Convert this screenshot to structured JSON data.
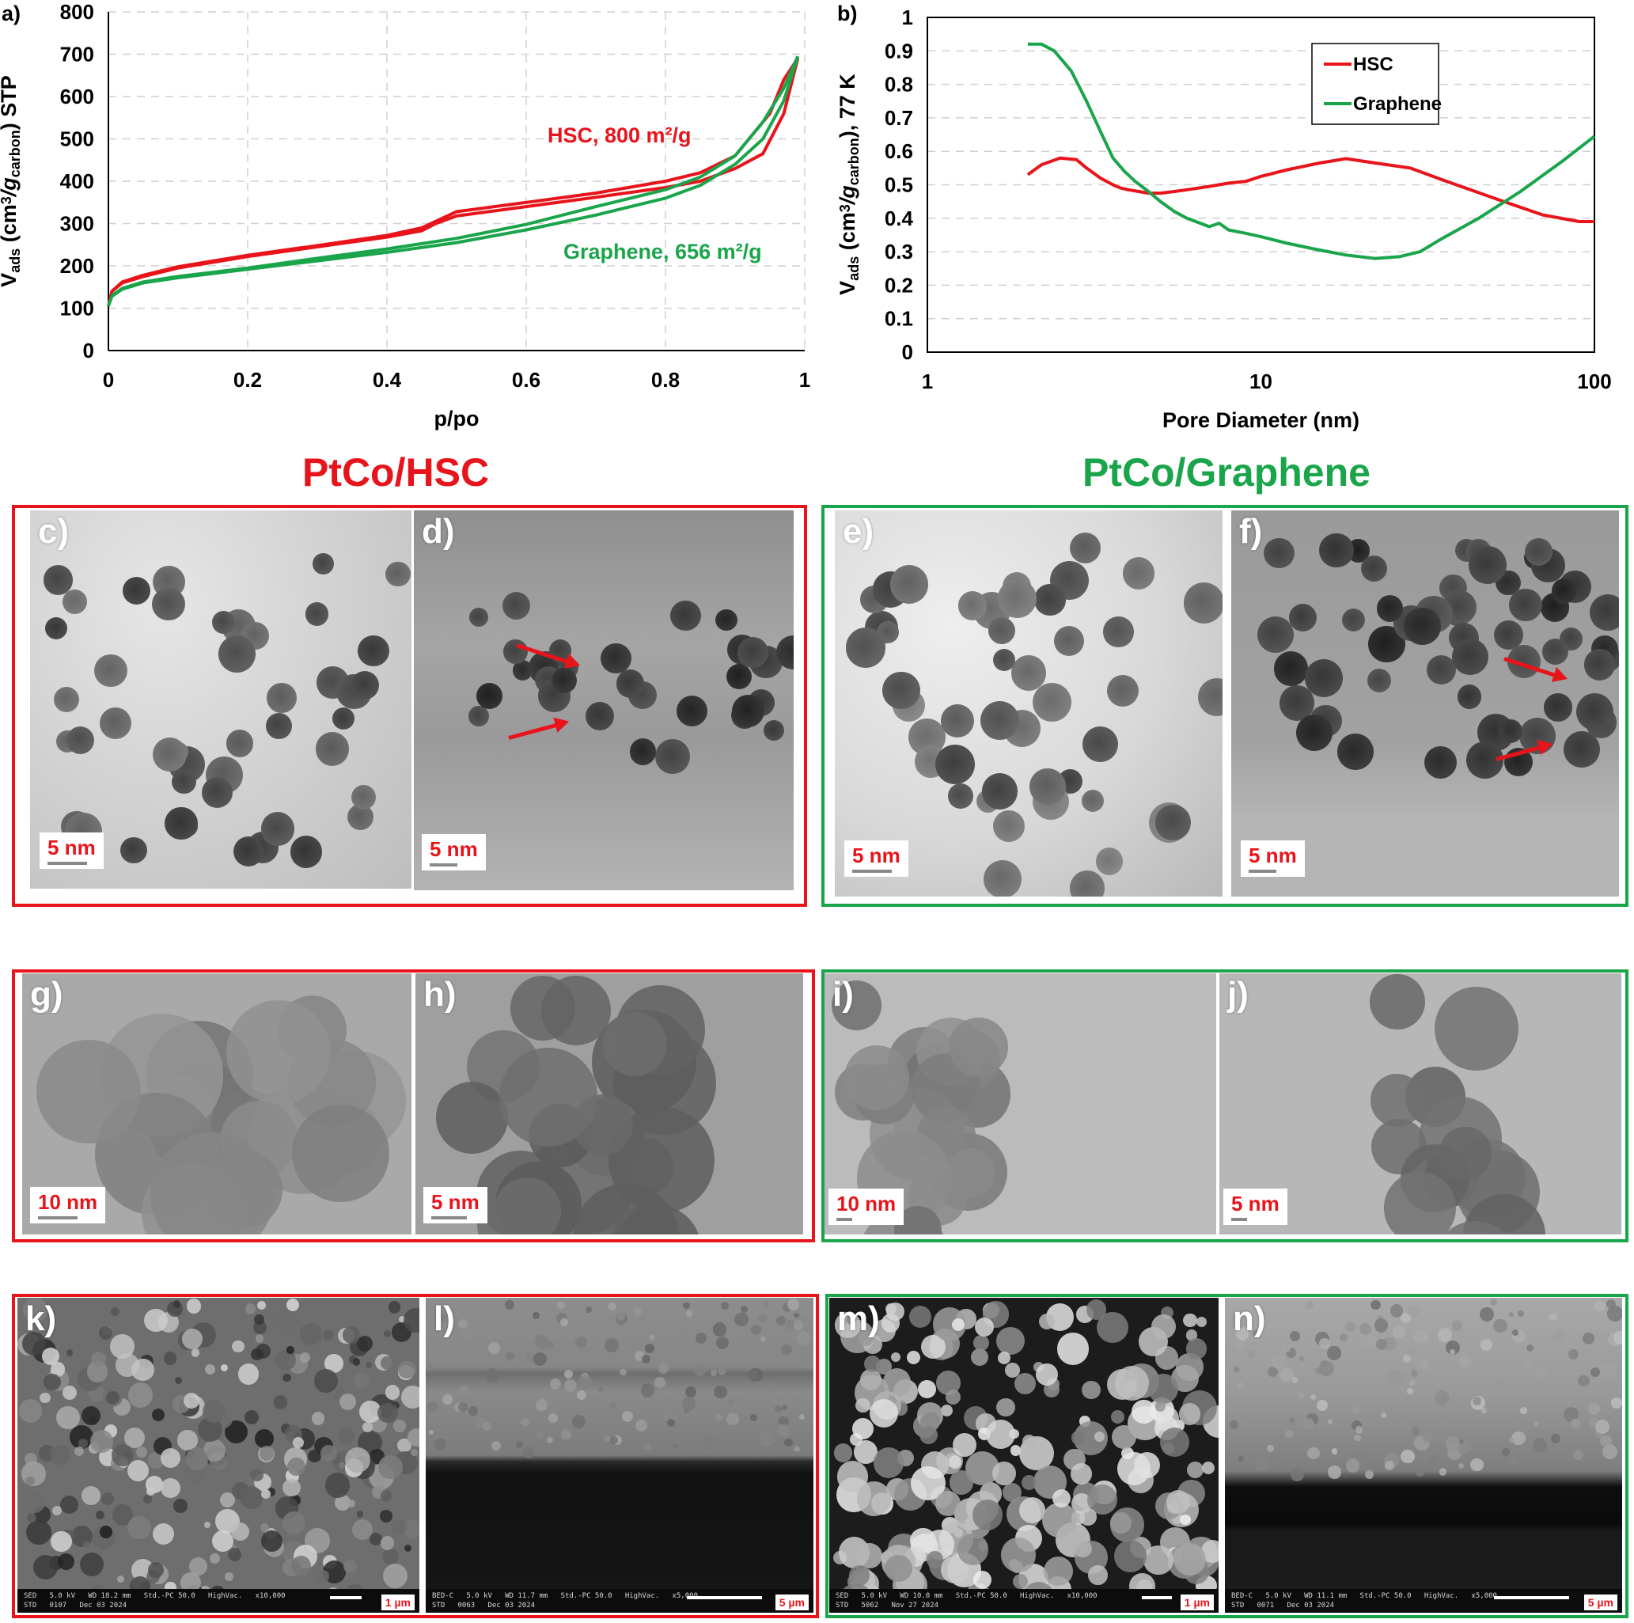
{
  "chart_data": [
    {
      "panel_label": "a)",
      "type": "line",
      "xlabel": "p/po",
      "ylabel_parts": [
        "V",
        "ads",
        " (cm",
        "3",
        "/g",
        "carbon",
        ") STP"
      ],
      "xlim": [
        0,
        1
      ],
      "ylim": [
        0,
        800
      ],
      "xticks": [
        "0",
        "0.2",
        "0.4",
        "0.6",
        "0.8",
        "1"
      ],
      "yticks": [
        "0",
        "100",
        "200",
        "300",
        "400",
        "500",
        "600",
        "700",
        "800"
      ],
      "grid": true,
      "annotations": [
        {
          "text": "HSC, 800 m²/g",
          "color": "#e8141b"
        },
        {
          "text": "Graphene, 656 m²/g",
          "color": "#1aa54b"
        }
      ],
      "series": [
        {
          "color": "#e8141b",
          "x": [
            0,
            0.005,
            0.02,
            0.05,
            0.1,
            0.2,
            0.3,
            0.4,
            0.45,
            0.47,
            0.5,
            0.6,
            0.7,
            0.8,
            0.85,
            0.9,
            0.94,
            0.97,
            0.99
          ],
          "y": [
            105,
            140,
            160,
            175,
            195,
            222,
            245,
            268,
            283,
            300,
            318,
            340,
            362,
            385,
            400,
            430,
            465,
            560,
            690
          ]
        },
        {
          "color": "#e8141b",
          "x": [
            0.99,
            0.97,
            0.95,
            0.9,
            0.85,
            0.8,
            0.7,
            0.6,
            0.5,
            0.45,
            0.4,
            0.3,
            0.2,
            0.1,
            0.05,
            0.02,
            0.005
          ],
          "y": [
            690,
            640,
            560,
            460,
            420,
            400,
            372,
            350,
            328,
            290,
            272,
            248,
            225,
            198,
            178,
            162,
            140
          ]
        },
        {
          "color": "#1aa54b",
          "x": [
            0,
            0.005,
            0.02,
            0.05,
            0.1,
            0.2,
            0.3,
            0.4,
            0.5,
            0.6,
            0.7,
            0.8,
            0.85,
            0.9,
            0.94,
            0.97,
            0.99
          ],
          "y": [
            105,
            128,
            145,
            160,
            172,
            192,
            212,
            232,
            255,
            285,
            320,
            360,
            390,
            440,
            500,
            590,
            695
          ]
        },
        {
          "color": "#1aa54b",
          "x": [
            0.99,
            0.97,
            0.94,
            0.9,
            0.85,
            0.8,
            0.7,
            0.6,
            0.5,
            0.4,
            0.3,
            0.2,
            0.1,
            0.05,
            0.02,
            0.005
          ],
          "y": [
            695,
            620,
            540,
            460,
            410,
            380,
            340,
            298,
            265,
            240,
            218,
            195,
            175,
            162,
            147,
            130
          ]
        }
      ]
    },
    {
      "panel_label": "b)",
      "type": "line",
      "xlabel": "Pore Diameter (nm)",
      "ylabel_parts": [
        "V",
        "ads",
        " (cm",
        "3",
        "/g",
        "carbon",
        "), 77 K"
      ],
      "xscale": "log",
      "xlim": [
        1,
        100
      ],
      "ylim": [
        0,
        1
      ],
      "xticks": [
        "1",
        "10",
        "100"
      ],
      "yticks": [
        "0",
        "0.1",
        "0.2",
        "0.3",
        "0.4",
        "0.5",
        "0.6",
        "0.7",
        "0.8",
        "0.9",
        "1"
      ],
      "grid": true,
      "legend_position": "top-right",
      "series": [
        {
          "name": "HSC",
          "color": "#e8141b",
          "x": [
            2.0,
            2.2,
            2.5,
            2.8,
            3.0,
            3.3,
            3.6,
            3.8,
            4.0,
            4.3,
            4.6,
            5.0,
            5.5,
            6.0,
            7.0,
            8.0,
            9.0,
            10.0,
            12.0,
            15.0,
            18.0,
            22.0,
            28.0,
            35.0,
            50.0,
            70.0,
            90.0,
            100.0
          ],
          "y": [
            0.53,
            0.56,
            0.58,
            0.575,
            0.55,
            0.52,
            0.5,
            0.49,
            0.485,
            0.48,
            0.475,
            0.475,
            0.48,
            0.485,
            0.495,
            0.505,
            0.51,
            0.525,
            0.545,
            0.565,
            0.578,
            0.565,
            0.55,
            0.515,
            0.46,
            0.41,
            0.39,
            0.39
          ]
        },
        {
          "name": "Graphene",
          "color": "#1aa54b",
          "x": [
            2.0,
            2.2,
            2.4,
            2.7,
            3.0,
            3.3,
            3.6,
            3.9,
            4.2,
            4.6,
            5.0,
            5.5,
            6.0,
            7.0,
            7.5,
            8.0,
            9.0,
            10.0,
            12.0,
            15.0,
            18.0,
            22.0,
            26.0,
            30.0,
            35.0,
            45.0,
            60.0,
            80.0,
            100.0
          ],
          "y": [
            0.92,
            0.92,
            0.9,
            0.84,
            0.75,
            0.66,
            0.58,
            0.54,
            0.51,
            0.48,
            0.45,
            0.42,
            0.4,
            0.375,
            0.385,
            0.365,
            0.355,
            0.345,
            0.325,
            0.305,
            0.29,
            0.28,
            0.285,
            0.3,
            0.34,
            0.4,
            0.48,
            0.57,
            0.645
          ]
        }
      ]
    }
  ],
  "groups": {
    "hsc_title": "PtCo/HSC",
    "graphene_title": "PtCo/Graphene",
    "hsc_color": "#e8141b",
    "graphene_color": "#1aa54b"
  },
  "panels": {
    "c": {
      "label": "c)",
      "scale": "5 nm"
    },
    "d": {
      "label": "d)",
      "scale": "5 nm"
    },
    "e": {
      "label": "e)",
      "scale": "5 nm"
    },
    "f": {
      "label": "f)",
      "scale": "5 nm"
    },
    "g": {
      "label": "g)",
      "scale": "10 nm"
    },
    "h": {
      "label": "h)",
      "scale": "5 nm"
    },
    "i": {
      "label": "i)",
      "scale": "10 nm"
    },
    "j": {
      "label": "j)",
      "scale": "5 nm"
    },
    "k": {
      "label": "k)",
      "scale": "1 µm",
      "meta": "SED   5.0 kV   WD 18.2 mm   Std.-PC 50.0   HighVac.   x10,000\nSTD   0107   Dec 03 2024"
    },
    "l": {
      "label": "l)",
      "scale": "5 µm",
      "meta": "BED-C   5.0 kV   WD 11.7 mm   Std.-PC 50.0   HighVac.   x5,000\nSTD   0063   Dec 03 2024"
    },
    "m": {
      "label": "m)",
      "scale": "1 µm",
      "meta": "SED   5.0 kV   WD 10.0 mm   Std.-PC 50.0   HighVac.   x10,000\nSTD   5062   Nov 27 2024"
    },
    "n": {
      "label": "n)",
      "scale": "5 µm",
      "meta": "BED-C   5.0 kV   WD 11.1 mm   Std.-PC 50.0   HighVac.   x5,000\nSTD   0071   Dec 03 2024"
    }
  }
}
